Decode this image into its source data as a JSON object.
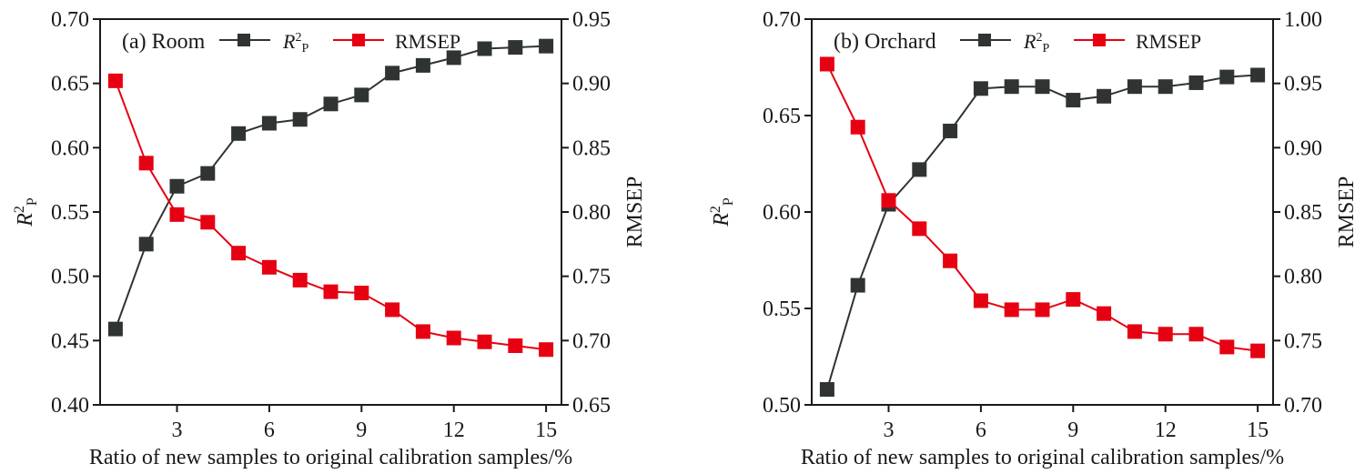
{
  "chart_data": [
    {
      "type": "line",
      "panel_label": "(a) Room",
      "title": "",
      "xlabel": "Ratio of new samples to original calibration samples/%",
      "ylabel_left": {
        "main": "R",
        "sup": "2",
        "sub": "P"
      },
      "ylabel_right": "RMSEP",
      "x": [
        1,
        2,
        3,
        4,
        5,
        6,
        7,
        8,
        9,
        10,
        11,
        12,
        13,
        14,
        15
      ],
      "xticks": [
        3,
        6,
        9,
        12,
        15
      ],
      "xlim": [
        0.5,
        15.5
      ],
      "ylim_left": [
        0.4,
        0.7
      ],
      "yticks_left": [
        "0.40",
        "0.45",
        "0.50",
        "0.55",
        "0.60",
        "0.65",
        "0.70"
      ],
      "ylim_right": [
        0.65,
        0.95
      ],
      "yticks_right": [
        "0.65",
        "0.70",
        "0.75",
        "0.80",
        "0.85",
        "0.90",
        "0.95"
      ],
      "grid": false,
      "legend_position": "top",
      "series": [
        {
          "name": "R2P",
          "legend_main": "R",
          "legend_sup": "2",
          "legend_sub": "P",
          "axis": "left",
          "color": "#2f3433",
          "values": [
            0.459,
            0.525,
            0.57,
            0.58,
            0.611,
            0.619,
            0.622,
            0.634,
            0.641,
            0.658,
            0.664,
            0.67,
            0.677,
            0.678,
            0.679
          ]
        },
        {
          "name": "RMSEP",
          "legend_main": "RMSEP",
          "axis": "right",
          "color": "#e60012",
          "values": [
            0.902,
            0.838,
            0.798,
            0.792,
            0.768,
            0.757,
            0.747,
            0.738,
            0.737,
            0.724,
            0.707,
            0.702,
            0.699,
            0.696,
            0.693
          ]
        }
      ]
    },
    {
      "type": "line",
      "panel_label": "(b) Orchard",
      "title": "",
      "xlabel": "Ratio of new samples to original calibration samples/%",
      "ylabel_left": {
        "main": "R",
        "sup": "2",
        "sub": "P"
      },
      "ylabel_right": "RMSEP",
      "x": [
        1,
        2,
        3,
        4,
        5,
        6,
        7,
        8,
        9,
        10,
        11,
        12,
        13,
        14,
        15
      ],
      "xticks": [
        3,
        6,
        9,
        12,
        15
      ],
      "xlim": [
        0.5,
        15.5
      ],
      "ylim_left": [
        0.5,
        0.7
      ],
      "yticks_left": [
        "0.50",
        "0.55",
        "0.60",
        "0.65",
        "0.70"
      ],
      "ylim_right": [
        0.7,
        1.0
      ],
      "yticks_right": [
        "0.70",
        "0.75",
        "0.80",
        "0.85",
        "0.90",
        "0.95",
        "1.00"
      ],
      "grid": false,
      "legend_position": "top",
      "series": [
        {
          "name": "R2P",
          "legend_main": "R",
          "legend_sup": "2",
          "legend_sub": "P",
          "axis": "left",
          "color": "#2f3433",
          "values": [
            0.508,
            0.562,
            0.604,
            0.622,
            0.642,
            0.664,
            0.665,
            0.665,
            0.658,
            0.66,
            0.665,
            0.665,
            0.667,
            0.67,
            0.671
          ]
        },
        {
          "name": "RMSEP",
          "legend_main": "RMSEP",
          "axis": "right",
          "color": "#e60012",
          "values": [
            0.965,
            0.916,
            0.859,
            0.837,
            0.812,
            0.781,
            0.774,
            0.774,
            0.782,
            0.771,
            0.757,
            0.755,
            0.755,
            0.745,
            0.742
          ]
        }
      ]
    }
  ]
}
